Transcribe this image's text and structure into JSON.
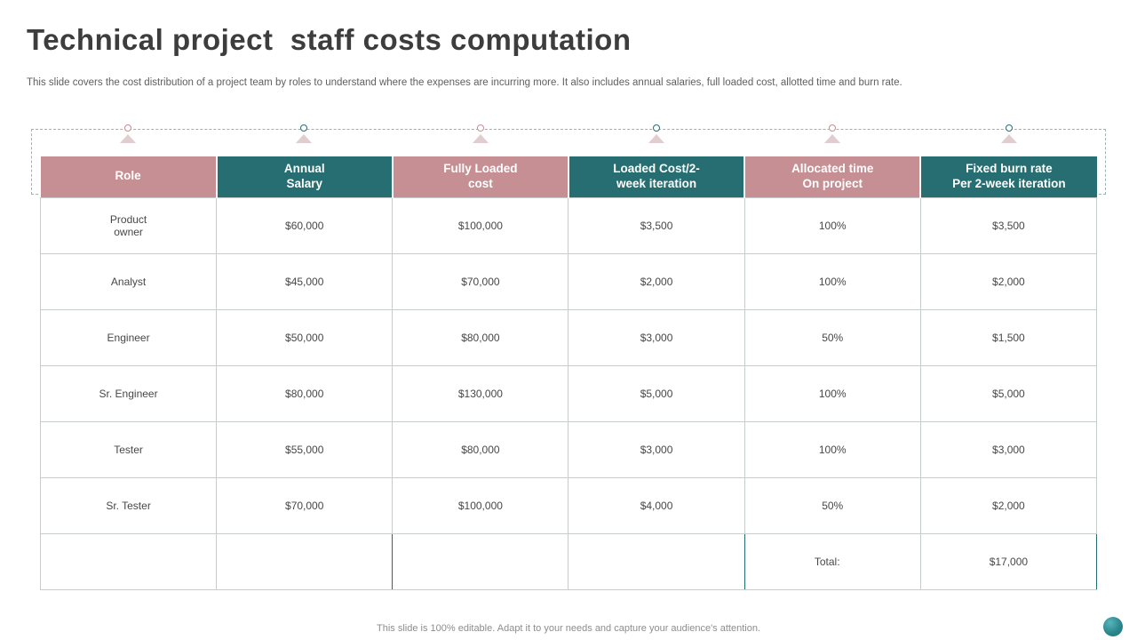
{
  "slide": {
    "title": "Technical project  staff costs computation",
    "subtitle": "This slide covers the cost distribution of a project team by roles to understand where the expenses are incurring more. It also includes annual salaries, full loaded cost, allotted time and burn rate.",
    "footer": "This slide is 100% editable.  Adapt it to your needs and capture your audience's attention."
  },
  "colors": {
    "pink": "#c68f93",
    "teal": "#266e72",
    "triangle": "#e0cdce",
    "title_text": "#3d3d3d",
    "body_text": "#474747"
  },
  "table": {
    "headers": [
      {
        "label": "Role",
        "color": "pink"
      },
      {
        "label": "Annual\nSalary",
        "color": "teal"
      },
      {
        "label": "Fully Loaded\ncost",
        "color": "pink"
      },
      {
        "label": "Loaded Cost/2-\nweek iteration",
        "color": "teal"
      },
      {
        "label": "Allocated time\nOn project",
        "color": "pink"
      },
      {
        "label": "Fixed burn rate\nPer 2-week iteration",
        "color": "teal"
      }
    ],
    "rows": [
      {
        "role": "Product\nowner",
        "values": [
          "$60,000",
          "$100,000",
          "$3,500",
          "100%",
          "$3,500"
        ]
      },
      {
        "role": "Analyst",
        "values": [
          "$45,000",
          "$70,000",
          "$2,000",
          "100%",
          "$2,000"
        ]
      },
      {
        "role": "Engineer",
        "values": [
          "$50,000",
          "$80,000",
          "$3,000",
          "50%",
          "$1,500"
        ]
      },
      {
        "role": "Sr. Engineer",
        "values": [
          "$80,000",
          "$130,000",
          "$5,000",
          "100%",
          "$5,000"
        ]
      },
      {
        "role": "Tester",
        "values": [
          "$55,000",
          "$80,000",
          "$3,000",
          "100%",
          "$3,000"
        ]
      },
      {
        "role": "Sr. Tester",
        "values": [
          "$70,000",
          "$100,000",
          "$4,000",
          "50%",
          "$2,000"
        ]
      }
    ],
    "total_label": "Total:",
    "total_value": "$17,000"
  }
}
